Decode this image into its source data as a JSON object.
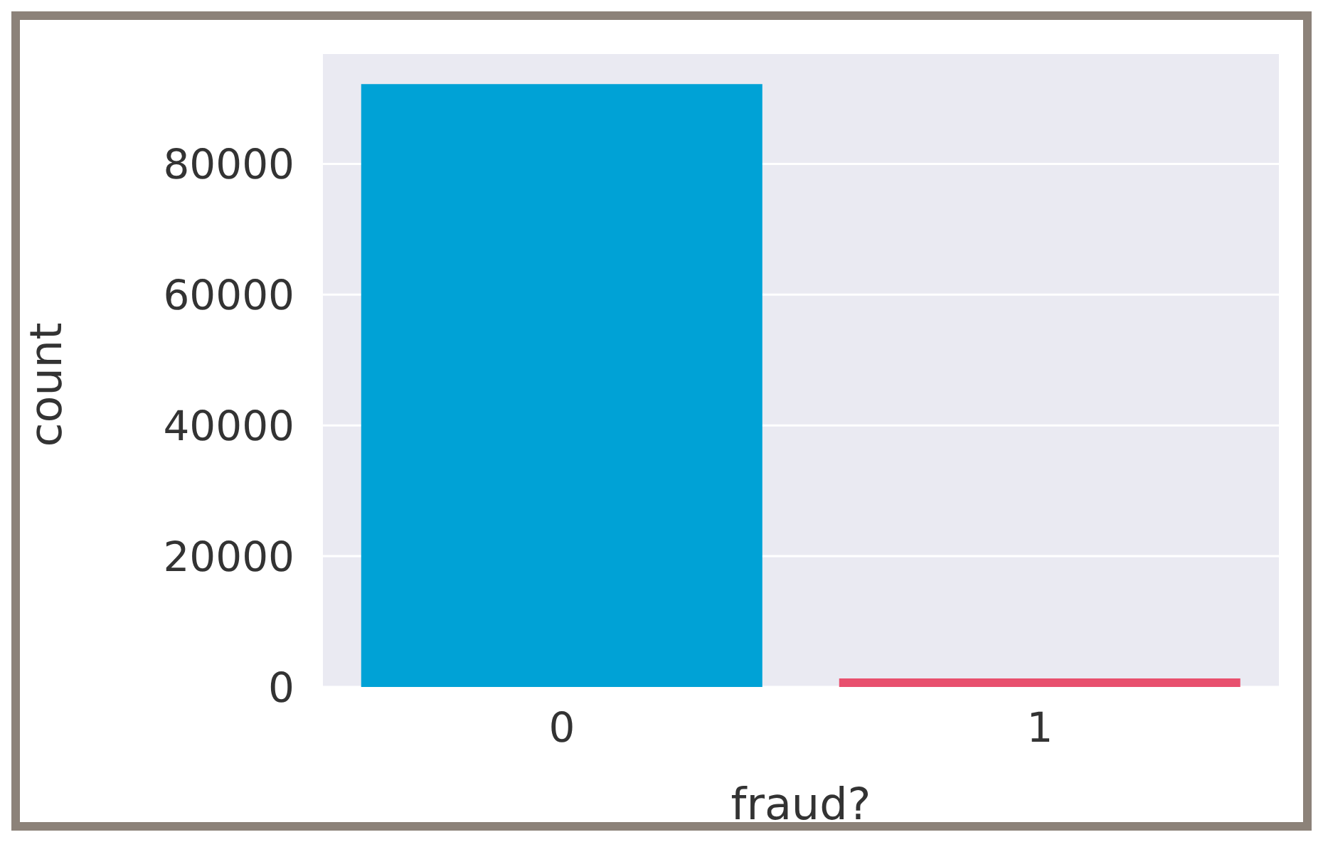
{
  "chart_data": {
    "type": "bar",
    "xlabel": "fraud?",
    "ylabel": "count",
    "categories": [
      "0",
      "1"
    ],
    "values": [
      92200,
      1300
    ],
    "colors": [
      "#00a2d6",
      "#e8506e"
    ],
    "ylim": [
      0,
      96800
    ],
    "yticks": [
      0,
      20000,
      40000,
      60000,
      80000
    ],
    "grid": "y"
  }
}
